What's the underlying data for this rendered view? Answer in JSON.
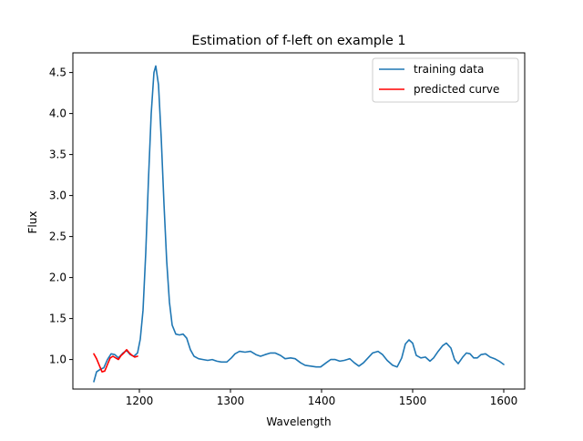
{
  "chart_data": {
    "type": "line",
    "title": "Estimation of f-left on example 1",
    "xlabel": "Wavelength",
    "ylabel": "Flux",
    "xlim": [
      1127,
      1623
    ],
    "ylim": [
      0.64,
      4.74
    ],
    "x_ticks": [
      1200,
      1300,
      1400,
      1500,
      1600
    ],
    "y_ticks": [
      1.0,
      1.5,
      2.0,
      2.5,
      3.0,
      3.5,
      4.0,
      4.5
    ],
    "x_tick_labels": [
      "1200",
      "1300",
      "1400",
      "1500",
      "1600"
    ],
    "y_tick_labels": [
      "1.0",
      "1.5",
      "2.0",
      "2.5",
      "3.0",
      "3.5",
      "4.0",
      "4.5"
    ],
    "grid": false,
    "legend_position": "top-right",
    "series": [
      {
        "name": "training data",
        "color": "#1f77b4",
        "points": [
          [
            1150,
            0.73
          ],
          [
            1153,
            0.85
          ],
          [
            1157,
            0.88
          ],
          [
            1161,
            0.9
          ],
          [
            1165,
            1.0
          ],
          [
            1169,
            1.07
          ],
          [
            1173,
            1.06
          ],
          [
            1177,
            1.02
          ],
          [
            1182,
            1.08
          ],
          [
            1186,
            1.11
          ],
          [
            1190,
            1.06
          ],
          [
            1194,
            1.04
          ],
          [
            1198,
            1.08
          ],
          [
            1201,
            1.25
          ],
          [
            1204,
            1.6
          ],
          [
            1207,
            2.3
          ],
          [
            1210,
            3.2
          ],
          [
            1213,
            4.0
          ],
          [
            1216,
            4.5
          ],
          [
            1218,
            4.58
          ],
          [
            1221,
            4.35
          ],
          [
            1224,
            3.7
          ],
          [
            1227,
            2.9
          ],
          [
            1230,
            2.2
          ],
          [
            1233,
            1.7
          ],
          [
            1236,
            1.42
          ],
          [
            1240,
            1.31
          ],
          [
            1244,
            1.3
          ],
          [
            1248,
            1.31
          ],
          [
            1252,
            1.26
          ],
          [
            1256,
            1.12
          ],
          [
            1260,
            1.04
          ],
          [
            1265,
            1.01
          ],
          [
            1270,
            1.0
          ],
          [
            1275,
            0.99
          ],
          [
            1280,
            1.0
          ],
          [
            1285,
            0.98
          ],
          [
            1290,
            0.97
          ],
          [
            1296,
            0.97
          ],
          [
            1301,
            1.02
          ],
          [
            1305,
            1.07
          ],
          [
            1310,
            1.1
          ],
          [
            1316,
            1.09
          ],
          [
            1322,
            1.1
          ],
          [
            1328,
            1.06
          ],
          [
            1333,
            1.04
          ],
          [
            1338,
            1.06
          ],
          [
            1344,
            1.08
          ],
          [
            1349,
            1.08
          ],
          [
            1355,
            1.05
          ],
          [
            1360,
            1.01
          ],
          [
            1366,
            1.02
          ],
          [
            1371,
            1.01
          ],
          [
            1377,
            0.96
          ],
          [
            1382,
            0.93
          ],
          [
            1388,
            0.92
          ],
          [
            1394,
            0.91
          ],
          [
            1399,
            0.91
          ],
          [
            1405,
            0.96
          ],
          [
            1410,
            1.0
          ],
          [
            1415,
            1.0
          ],
          [
            1420,
            0.98
          ],
          [
            1425,
            0.99
          ],
          [
            1431,
            1.01
          ],
          [
            1436,
            0.96
          ],
          [
            1441,
            0.92
          ],
          [
            1446,
            0.96
          ],
          [
            1451,
            1.02
          ],
          [
            1456,
            1.08
          ],
          [
            1462,
            1.1
          ],
          [
            1467,
            1.06
          ],
          [
            1472,
            0.99
          ],
          [
            1478,
            0.93
          ],
          [
            1483,
            0.91
          ],
          [
            1488,
            1.02
          ],
          [
            1492,
            1.19
          ],
          [
            1496,
            1.24
          ],
          [
            1500,
            1.2
          ],
          [
            1504,
            1.05
          ],
          [
            1509,
            1.02
          ],
          [
            1514,
            1.03
          ],
          [
            1519,
            0.98
          ],
          [
            1523,
            1.02
          ],
          [
            1528,
            1.1
          ],
          [
            1533,
            1.17
          ],
          [
            1537,
            1.2
          ],
          [
            1542,
            1.14
          ],
          [
            1546,
            1.0
          ],
          [
            1550,
            0.95
          ],
          [
            1555,
            1.03
          ],
          [
            1559,
            1.08
          ],
          [
            1563,
            1.07
          ],
          [
            1567,
            1.02
          ],
          [
            1571,
            1.02
          ],
          [
            1575,
            1.06
          ],
          [
            1580,
            1.07
          ],
          [
            1585,
            1.03
          ],
          [
            1590,
            1.01
          ],
          [
            1595,
            0.98
          ],
          [
            1600,
            0.94
          ]
        ]
      },
      {
        "name": "predicted curve",
        "color": "#ff0000",
        "points": [
          [
            1150,
            1.07
          ],
          [
            1153,
            1.01
          ],
          [
            1156,
            0.93
          ],
          [
            1159,
            0.85
          ],
          [
            1162,
            0.86
          ],
          [
            1165,
            0.94
          ],
          [
            1168,
            1.02
          ],
          [
            1171,
            1.04
          ],
          [
            1174,
            1.02
          ],
          [
            1177,
            1.0
          ],
          [
            1180,
            1.05
          ],
          [
            1183,
            1.08
          ],
          [
            1186,
            1.12
          ],
          [
            1189,
            1.08
          ],
          [
            1192,
            1.05
          ],
          [
            1195,
            1.03
          ],
          [
            1198,
            1.04
          ]
        ]
      }
    ]
  }
}
